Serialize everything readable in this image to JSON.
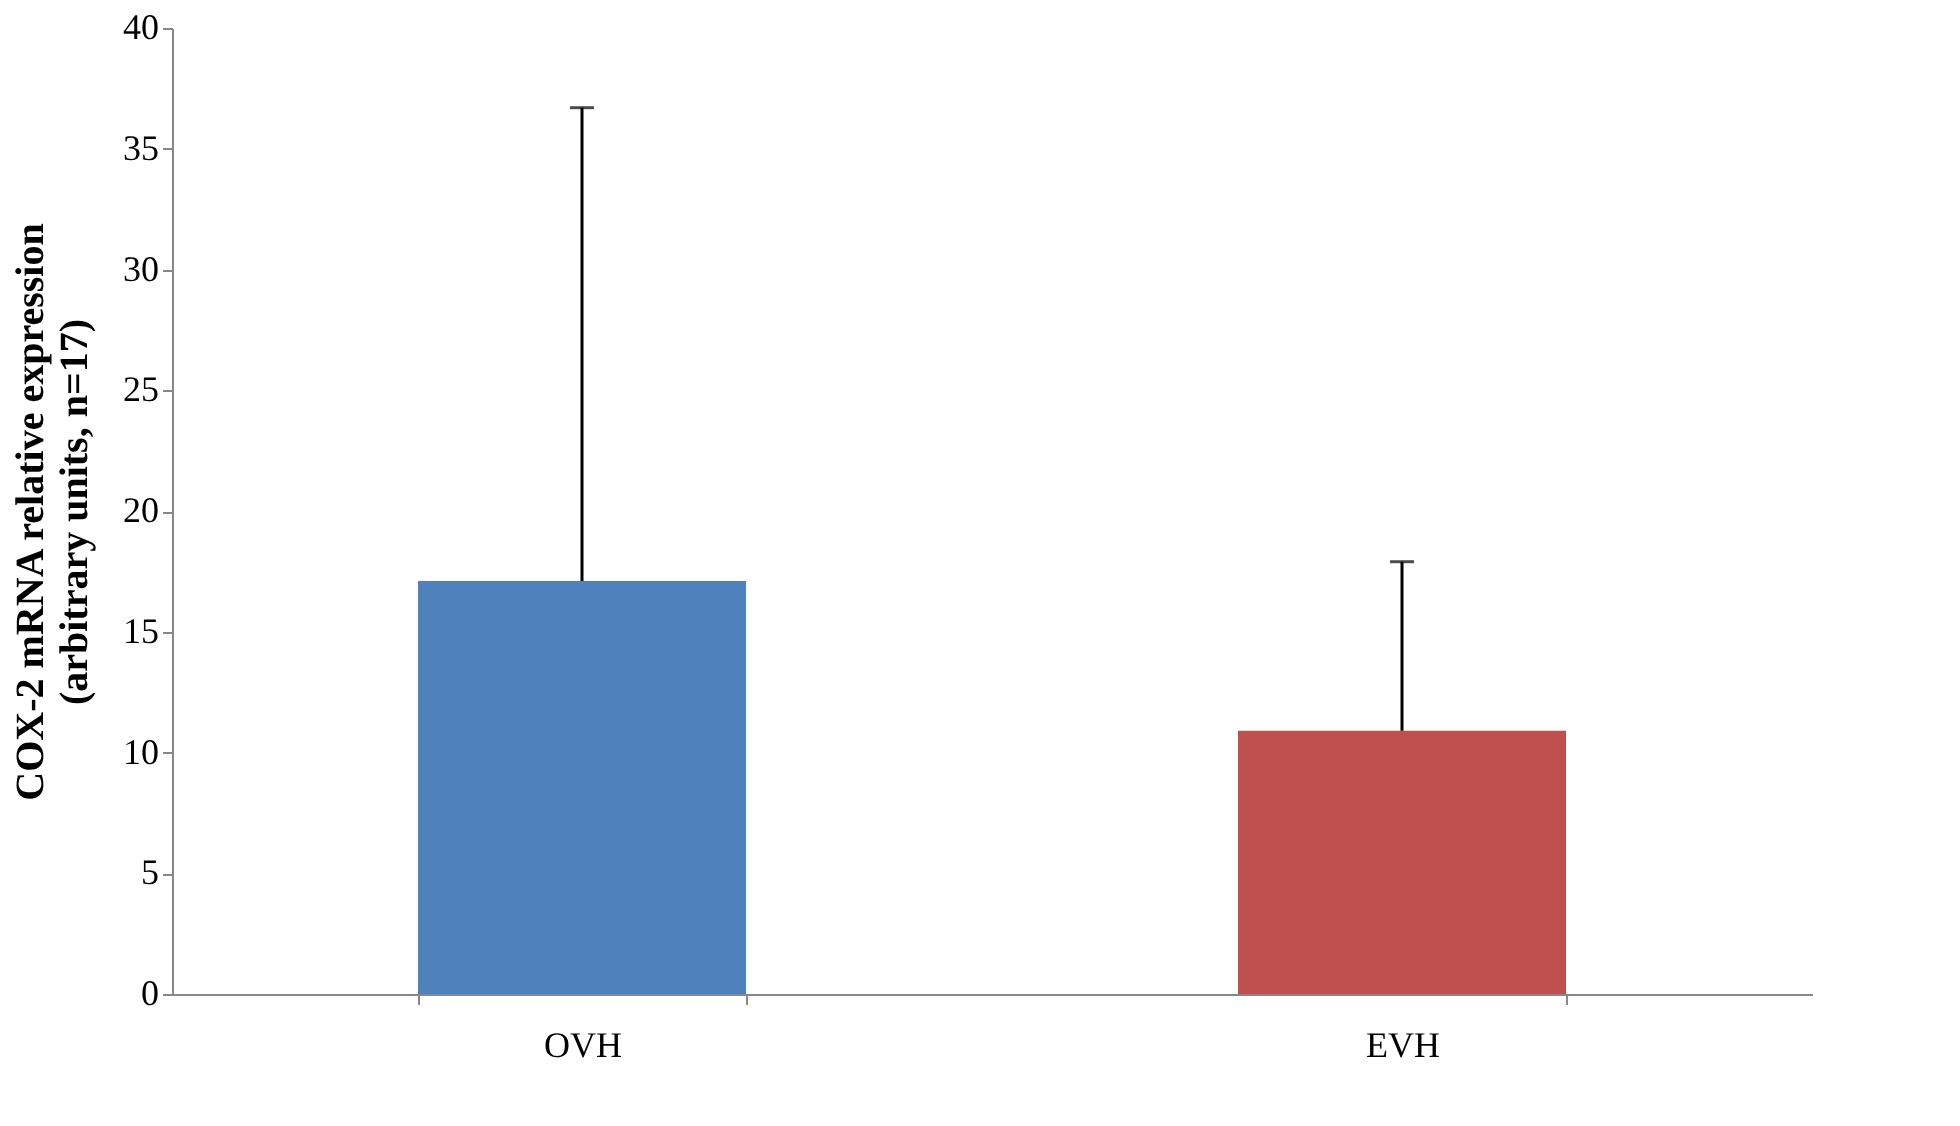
{
  "chart_data": {
    "type": "bar",
    "ylabel": "COX-2 mRNA relative expression\n(arbitrary units, n=17)",
    "categories": [
      "OVH",
      "EVH"
    ],
    "values": [
      17.1,
      10.9
    ],
    "colors": [
      "#4f81bd",
      "#c0504d"
    ],
    "errors": [
      [
        17.1,
        36.7
      ],
      [
        10.9,
        17.9
      ]
    ],
    "ylim": [
      0,
      40
    ],
    "yticks": [
      0,
      5,
      10,
      15,
      20,
      25,
      30,
      35,
      40
    ],
    "grid": false
  }
}
